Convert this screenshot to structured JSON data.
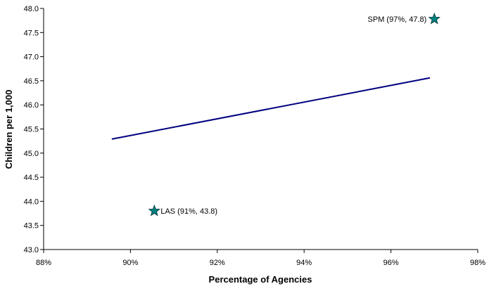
{
  "chart_data": {
    "type": "scatter",
    "title": "",
    "xlabel": "Percentage of Agencies",
    "ylabel": "Children per 1,000",
    "xlim": [
      88,
      98
    ],
    "ylim": [
      43.0,
      48.0
    ],
    "xticks": [
      88,
      90,
      92,
      94,
      96,
      98
    ],
    "xtick_labels": [
      "88%",
      "90%",
      "92%",
      "94%",
      "96%",
      "98%"
    ],
    "yticks": [
      43.0,
      43.5,
      44.0,
      44.5,
      45.0,
      45.5,
      46.0,
      46.5,
      47.0,
      47.5,
      48.0
    ],
    "ytick_labels": [
      "43.0",
      "43.5",
      "44.0",
      "44.5",
      "45.0",
      "45.5",
      "46.0",
      "46.5",
      "47.0",
      "47.5",
      "48.0"
    ],
    "grid": false,
    "points": [
      {
        "label": "LAS (91%, 43.8)",
        "x": 90.55,
        "y": 43.8,
        "marker": "star",
        "label_side": "right"
      },
      {
        "label": "SPM (97%, 47.8)",
        "x": 97.0,
        "y": 47.78,
        "marker": "star",
        "label_side": "left"
      }
    ],
    "trendline": {
      "x": [
        89.57,
        96.9
      ],
      "y": [
        45.29,
        46.56
      ]
    },
    "colors": {
      "marker": "#008080",
      "marker_edge": "#003333",
      "line": "#000080",
      "axis": "#000000"
    }
  }
}
